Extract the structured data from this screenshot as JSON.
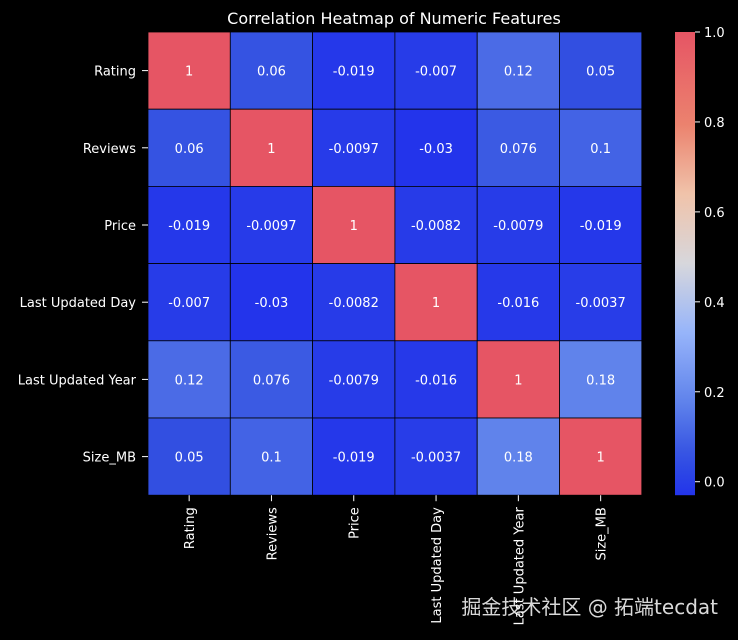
{
  "chart_data": {
    "type": "heatmap",
    "title": "Correlation Heatmap of Numeric Features",
    "rows": [
      "Rating",
      "Reviews",
      "Price",
      "Last Updated Day",
      "Last Updated Year",
      "Size_MB"
    ],
    "columns": [
      "Rating",
      "Reviews",
      "Price",
      "Last Updated Day",
      "Last Updated Year",
      "Size_MB"
    ],
    "values": [
      [
        1,
        0.06,
        -0.019,
        -0.007,
        0.12,
        0.05
      ],
      [
        0.06,
        1,
        -0.0097,
        -0.03,
        0.076,
        0.1
      ],
      [
        -0.019,
        -0.0097,
        1,
        -0.0082,
        -0.0079,
        -0.019
      ],
      [
        -0.007,
        -0.03,
        -0.0082,
        1,
        -0.016,
        -0.0037
      ],
      [
        0.12,
        0.076,
        -0.0079,
        -0.016,
        1,
        0.18
      ],
      [
        0.05,
        0.1,
        -0.019,
        -0.0037,
        0.18,
        1
      ]
    ],
    "labels": [
      [
        "1",
        "0.06",
        "-0.019",
        "-0.007",
        "0.12",
        "0.05"
      ],
      [
        "0.06",
        "1",
        "-0.0097",
        "-0.03",
        "0.076",
        "0.1"
      ],
      [
        "-0.019",
        "-0.0097",
        "1",
        "-0.0082",
        "-0.0079",
        "-0.019"
      ],
      [
        "-0.007",
        "-0.03",
        "-0.0082",
        "1",
        "-0.016",
        "-0.0037"
      ],
      [
        "0.12",
        "0.076",
        "-0.0079",
        "-0.016",
        "1",
        "0.18"
      ],
      [
        "0.05",
        "0.1",
        "-0.019",
        "-0.0037",
        "0.18",
        "1"
      ]
    ],
    "colormap": "coolwarm",
    "vmin": -0.03,
    "vmax": 1,
    "colorbar_ticks": [
      "0.0",
      "0.2",
      "0.4",
      "0.6",
      "0.8",
      "1.0"
    ],
    "colorbar_tick_values": [
      0,
      0.2,
      0.4,
      0.6,
      0.8,
      1.0
    ],
    "annotated": true,
    "colorbar_position": "right"
  },
  "watermark": {
    "text": "掘金技术社区 @ 拓端tecdat"
  },
  "colors": {
    "background": "#000000",
    "text": "#ffffff",
    "gridline": "#000000",
    "cmap_low": "#3b4cc0",
    "cmap_mid": "#dddddd",
    "cmap_high": "#b40426"
  }
}
